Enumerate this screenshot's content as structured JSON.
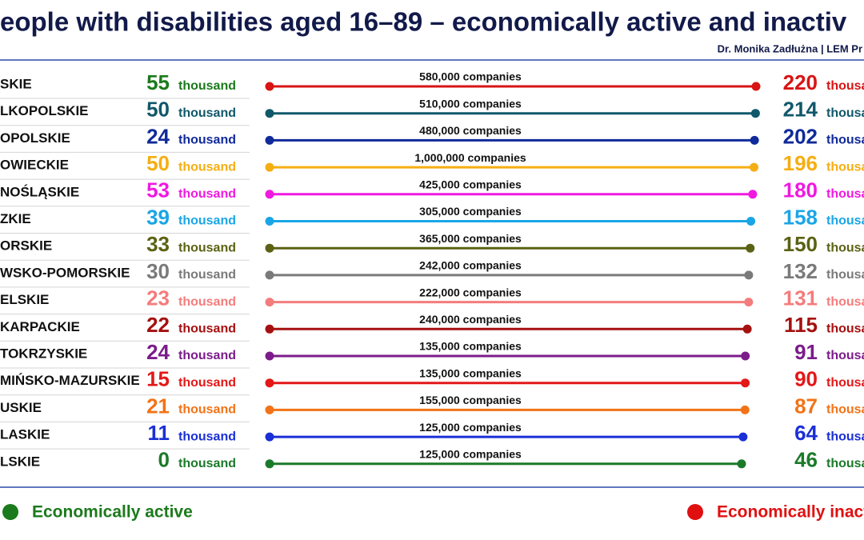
{
  "header": {
    "title": "eople with disabilities aged 16–89 – economically active and inactiv",
    "author": "Dr. Monika Zadłużna | LEM Pr"
  },
  "unit": "thousand",
  "rows": [
    {
      "region": "SKIE",
      "active": 55,
      "inactive": 220,
      "companies": "580,000 companies",
      "active_color": "#1b7a1b",
      "color": "#d81414"
    },
    {
      "region": "LKOPOLSKIE",
      "active": 50,
      "inactive": 214,
      "companies": "510,000 companies",
      "active_color": "#11586a",
      "color": "#11586a"
    },
    {
      "region": "OPOLSKIE",
      "active": 24,
      "inactive": 202,
      "companies": "480,000 companies",
      "active_color": "#102a9a",
      "color": "#102a9a"
    },
    {
      "region": "OWIECKIE",
      "active": 50,
      "inactive": 196,
      "companies": "1,000,000 companies",
      "active_color": "#f5ae12",
      "color": "#f5ae12"
    },
    {
      "region": "NOŚLĄSKIE",
      "active": 53,
      "inactive": 180,
      "companies": "425,000 companies",
      "active_color": "#f019e0",
      "color": "#f019e0"
    },
    {
      "region": "ZKIE",
      "active": 39,
      "inactive": 158,
      "companies": "305,000 companies",
      "active_color": "#1aa6e6",
      "color": "#1aa6e6"
    },
    {
      "region": "ORSKIE",
      "active": 33,
      "inactive": 150,
      "companies": "365,000 companies",
      "active_color": "#5b6213",
      "color": "#5b6213"
    },
    {
      "region": "WSKO-POMORSKIE",
      "active": 30,
      "inactive": 132,
      "companies": "242,000 companies",
      "active_color": "#7a7a7a",
      "color": "#7a7a7a"
    },
    {
      "region": "ELSKIE",
      "active": 23,
      "inactive": 131,
      "companies": "222,000 companies",
      "active_color": "#f47c7c",
      "color": "#f47c7c"
    },
    {
      "region": "KARPACKIE",
      "active": 22,
      "inactive": 115,
      "companies": "240,000 companies",
      "active_color": "#a51010",
      "color": "#a51010"
    },
    {
      "region": "TOKRZYSKIE",
      "active": 24,
      "inactive": 91,
      "companies": "135,000 companies",
      "active_color": "#7b1c8a",
      "color": "#7b1c8a"
    },
    {
      "region": "MIŃSKO-MAZURSKIE",
      "active": 15,
      "inactive": 90,
      "companies": "135,000 companies",
      "active_color": "#e31818",
      "color": "#e31818"
    },
    {
      "region": "USKIE",
      "active": 21,
      "inactive": 87,
      "companies": "155,000 companies",
      "active_color": "#f27317",
      "color": "#f27317"
    },
    {
      "region": "LASKIE",
      "active": 11,
      "inactive": 64,
      "companies": "125,000 companies",
      "active_color": "#1a2fd6",
      "color": "#1a2fd6"
    },
    {
      "region": "LSKIE",
      "active": 0,
      "inactive": 46,
      "companies": "125,000 companies",
      "active_color": "#1b7a2a",
      "color": "#1b7a2a"
    }
  ],
  "legend": [
    {
      "label": "Economically active",
      "color": "#1b7a1b"
    },
    {
      "label": "Economically inactive",
      "color": "#e01010"
    }
  ]
}
